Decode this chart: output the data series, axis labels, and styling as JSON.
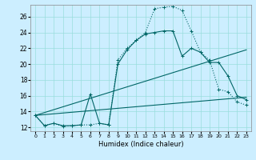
{
  "xlabel": "Humidex (Indice chaleur)",
  "bg_color": "#cceeff",
  "grid_color": "#99dddd",
  "line_color": "#006666",
  "xlim": [
    -0.5,
    23.5
  ],
  "ylim": [
    11.5,
    27.5
  ],
  "xticks": [
    0,
    1,
    2,
    3,
    4,
    5,
    6,
    7,
    8,
    9,
    10,
    11,
    12,
    13,
    14,
    15,
    16,
    17,
    18,
    19,
    20,
    21,
    22,
    23
  ],
  "yticks": [
    12,
    14,
    16,
    18,
    20,
    22,
    24,
    26
  ],
  "series_dot": {
    "x": [
      0,
      1,
      2,
      3,
      4,
      5,
      6,
      7,
      8,
      9,
      10,
      11,
      12,
      13,
      14,
      15,
      16,
      17,
      18,
      19,
      20,
      21,
      22,
      23
    ],
    "y": [
      13.5,
      12.2,
      12.5,
      12.1,
      12.2,
      12.3,
      12.3,
      12.5,
      12.3,
      20.5,
      22.0,
      23.0,
      24.0,
      27.0,
      27.2,
      27.3,
      26.8,
      24.2,
      21.5,
      20.5,
      16.8,
      16.5,
      15.2,
      14.8
    ]
  },
  "series_solid": {
    "x": [
      0,
      1,
      2,
      3,
      4,
      5,
      6,
      7,
      8,
      9,
      10,
      11,
      12,
      13,
      14,
      15,
      16,
      17,
      18,
      19,
      20,
      21,
      22,
      23
    ],
    "y": [
      13.5,
      12.2,
      12.5,
      12.2,
      12.2,
      12.3,
      16.2,
      12.5,
      12.3,
      20.0,
      21.8,
      23.0,
      23.8,
      24.0,
      24.2,
      24.2,
      21.0,
      22.0,
      21.5,
      20.2,
      20.2,
      18.5,
      16.0,
      15.5
    ]
  },
  "series_line1": {
    "x": [
      0,
      23
    ],
    "y": [
      13.5,
      21.8
    ]
  },
  "series_line2": {
    "x": [
      0,
      23
    ],
    "y": [
      13.5,
      15.8
    ]
  }
}
